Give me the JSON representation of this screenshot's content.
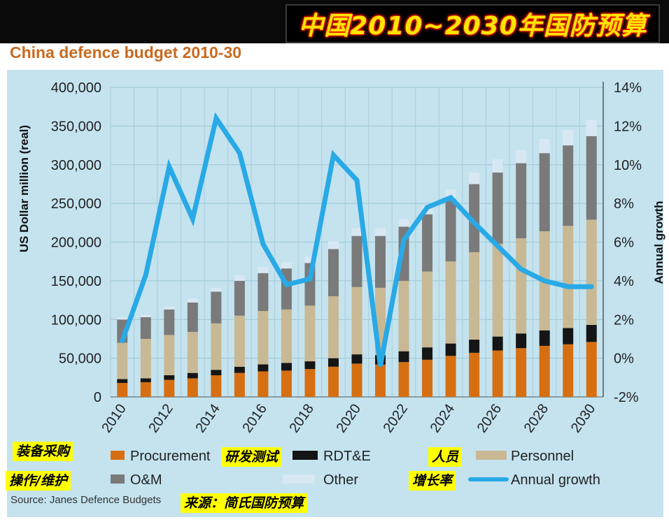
{
  "banner": {
    "title": "中国2010~2030年国防预算"
  },
  "header": {
    "subtitle": "China defence budget 2010-30"
  },
  "source": "Source: Janes Defence Budgets",
  "annotations": {
    "procurement_cn": "装备采购",
    "rdte_cn": "研发测试",
    "personnel_cn": "人员",
    "om_cn": "操作/维护",
    "growth_cn": "增长率",
    "source_cn": "来源：简氏国防预算"
  },
  "colors": {
    "procurement": "#d66f12",
    "rdte": "#151515",
    "personnel": "#c9b894",
    "om": "#7a7a7a",
    "other": "#d8e8f2",
    "growth": "#29a9e6",
    "plot_bg": "#c4e3ef",
    "banner_text": "#ffe600"
  },
  "chart_data": {
    "type": "bar",
    "stacked": true,
    "title": "China defence budget 2010-30",
    "ylabel": "US Dollar million (real)",
    "y2label": "Annual growth",
    "ylim": [
      0,
      400000
    ],
    "y2lim": [
      -2,
      14
    ],
    "yticks": [
      "0",
      "50,000",
      "100,000",
      "150,000",
      "200,000",
      "250,000",
      "300,000",
      "350,000",
      "400,000"
    ],
    "y2ticks": [
      "-2%",
      "0%",
      "2%",
      "4%",
      "6%",
      "8%",
      "10%",
      "12%",
      "14%"
    ],
    "xticks": [
      "2010",
      "2012",
      "2014",
      "2016",
      "2018",
      "2020",
      "2022",
      "2024",
      "2026",
      "2028",
      "2030"
    ],
    "grid": true,
    "categories": [
      2010,
      2011,
      2012,
      2013,
      2014,
      2015,
      2016,
      2017,
      2018,
      2019,
      2020,
      2021,
      2022,
      2023,
      2024,
      2025,
      2026,
      2027,
      2028,
      2029,
      2030
    ],
    "series": [
      {
        "name": "Procurement",
        "values": [
          18000,
          19000,
          22000,
          24000,
          28000,
          31000,
          33000,
          34000,
          36000,
          39000,
          43000,
          42000,
          45000,
          48000,
          53000,
          57000,
          60000,
          63000,
          66000,
          68000,
          71000
        ]
      },
      {
        "name": "RDT&E",
        "values": [
          5000,
          5000,
          6000,
          7000,
          7000,
          8000,
          9000,
          10000,
          10000,
          11000,
          12000,
          12000,
          14000,
          16000,
          16000,
          17000,
          18000,
          19000,
          20000,
          21000,
          22000
        ]
      },
      {
        "name": "Personnel",
        "values": [
          47000,
          51000,
          52000,
          53000,
          60000,
          66000,
          69000,
          69000,
          72000,
          80000,
          87000,
          87000,
          91000,
          98000,
          106000,
          113000,
          120000,
          123000,
          128000,
          132000,
          136000
        ]
      },
      {
        "name": "O&M",
        "values": [
          30000,
          28000,
          33000,
          38000,
          41000,
          45000,
          49000,
          53000,
          55000,
          61000,
          66000,
          67000,
          70000,
          74000,
          81000,
          88000,
          92000,
          97000,
          101000,
          104000,
          108000
        ]
      },
      {
        "name": "Other",
        "values": [
          3000,
          3000,
          4000,
          5000,
          5000,
          7000,
          8000,
          8000,
          8000,
          10000,
          10000,
          10000,
          10000,
          11000,
          12000,
          15000,
          17000,
          17000,
          18000,
          20000,
          21000
        ]
      }
    ],
    "line": {
      "name": "Annual growth",
      "axis": "right",
      "values": [
        0.9,
        4.3,
        9.9,
        7.2,
        12.4,
        10.6,
        5.9,
        3.8,
        4.1,
        10.5,
        9.2,
        -0.4,
        6.1,
        7.8,
        8.3,
        7.0,
        5.8,
        4.6,
        4.0,
        3.7,
        3.7
      ]
    }
  }
}
